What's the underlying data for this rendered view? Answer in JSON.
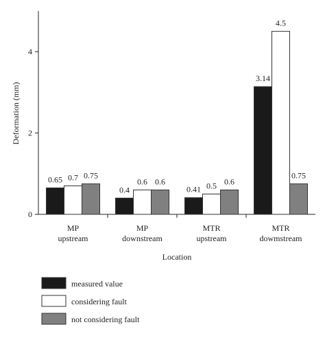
{
  "chart_data": {
    "type": "bar",
    "title": "",
    "xlabel": "Location",
    "ylabel": "Deformation (mm)",
    "ylim": [
      0,
      5
    ],
    "yticks": [
      0,
      2,
      4
    ],
    "grid": false,
    "legend_position": "bottom-left",
    "categories": [
      [
        "MP",
        "upstream"
      ],
      [
        "MP",
        "downstream"
      ],
      [
        "MTR",
        "upstream"
      ],
      [
        "MTR",
        "dowmstream"
      ]
    ],
    "series": [
      {
        "name": "measured value",
        "color": "#1a1a1a",
        "values": [
          0.65,
          0.4,
          0.41,
          3.14
        ],
        "labels": [
          "0.65",
          "0.4",
          "0.41",
          "3.14"
        ]
      },
      {
        "name": "considering fault",
        "color": "#ffffff",
        "values": [
          0.7,
          0.6,
          0.5,
          4.5
        ],
        "labels": [
          "0.7",
          "0.6",
          "0.5",
          "4.5"
        ]
      },
      {
        "name": "not considering fault",
        "color": "#808080",
        "values": [
          0.75,
          0.6,
          0.6,
          0.75
        ],
        "labels": [
          "0.75",
          "0.6",
          "0.6",
          "0.75"
        ]
      }
    ]
  }
}
